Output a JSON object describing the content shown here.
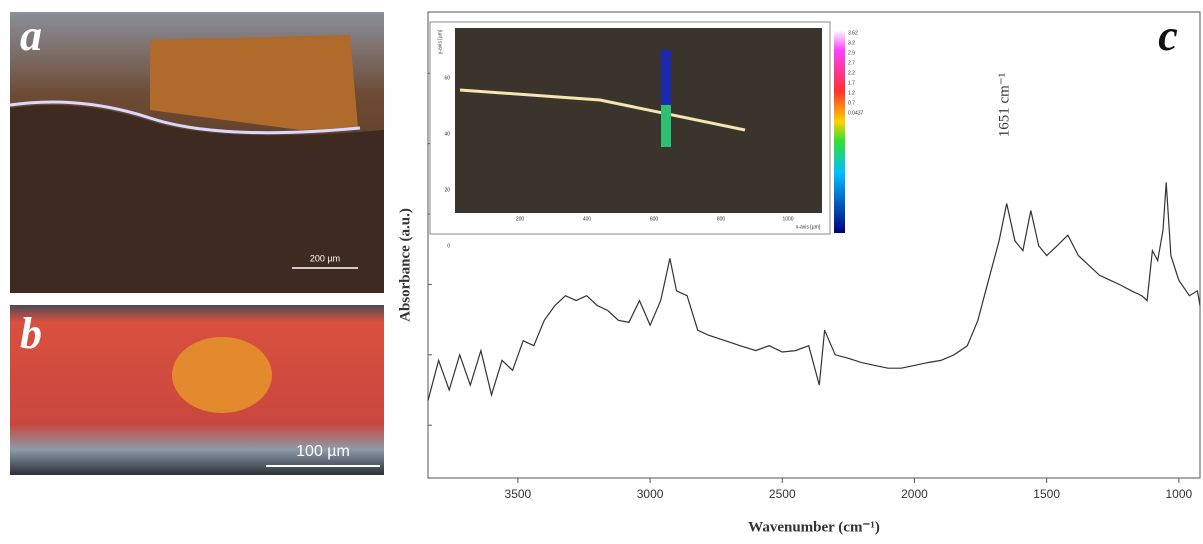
{
  "panels": {
    "a": {
      "label": "a",
      "scale_bar": "200 µm"
    },
    "b": {
      "label": "b",
      "scale_bar": "100 µm"
    },
    "c": {
      "label": "c"
    }
  },
  "inset": {
    "x_ticks": [
      "200",
      "400",
      "600",
      "800",
      "1000"
    ],
    "x_axis_label": "x-axis [µm]",
    "y_ticks": [
      "60",
      "40",
      "20",
      "0"
    ],
    "y_axis_label": "y-axis [µm]",
    "colorbar_ticks": [
      "3.62",
      "3.2",
      "2.9",
      "2.7",
      "2.2",
      "1.7",
      "1.2",
      "0.7",
      "0.0437"
    ]
  },
  "chart_data": {
    "type": "line",
    "x_label": "Wavenumber (cm⁻¹)",
    "y_label": "Absorbance (a.u.)",
    "annotation": "1651 cm⁻¹",
    "x": [
      3840,
      3800,
      3760,
      3720,
      3680,
      3640,
      3600,
      3560,
      3520,
      3480,
      3440,
      3400,
      3360,
      3320,
      3280,
      3240,
      3200,
      3160,
      3120,
      3080,
      3040,
      3000,
      2960,
      2925,
      2900,
      2860,
      2820,
      2780,
      2740,
      2700,
      2660,
      2600,
      2550,
      2500,
      2450,
      2400,
      2360,
      2340,
      2300,
      2250,
      2200,
      2150,
      2100,
      2050,
      2000,
      1950,
      1900,
      1850,
      1800,
      1760,
      1720,
      1680,
      1651,
      1620,
      1590,
      1560,
      1530,
      1500,
      1460,
      1420,
      1380,
      1340,
      1300,
      1260,
      1220,
      1180,
      1140,
      1120,
      1100,
      1080,
      1060,
      1048,
      1030,
      1000,
      960,
      930,
      920
    ],
    "series": [
      {
        "color": "#333333",
        "values": [
          1.35,
          1.92,
          1.5,
          2.0,
          1.57,
          2.06,
          1.43,
          1.92,
          1.78,
          2.2,
          2.13,
          2.49,
          2.7,
          2.84,
          2.77,
          2.84,
          2.7,
          2.63,
          2.49,
          2.46,
          2.77,
          2.42,
          2.77,
          3.37,
          2.91,
          2.84,
          2.35,
          2.28,
          2.23,
          2.18,
          2.13,
          2.06,
          2.13,
          2.04,
          2.06,
          2.13,
          1.57,
          2.35,
          2.0,
          1.95,
          1.89,
          1.85,
          1.81,
          1.81,
          1.85,
          1.89,
          1.92,
          2.0,
          2.13,
          2.49,
          3.06,
          3.62,
          4.15,
          3.62,
          3.48,
          4.05,
          3.55,
          3.41,
          3.55,
          3.7,
          3.41,
          3.27,
          3.13,
          3.06,
          2.99,
          2.91,
          2.84,
          2.77,
          3.48,
          3.34,
          3.77,
          4.45,
          3.41,
          3.06,
          2.84,
          2.91,
          2.7
        ]
      }
    ],
    "xlim": [
      3840,
      920
    ],
    "xticks": [
      3500,
      3000,
      2500,
      2000,
      1500,
      1000
    ],
    "ylim": [
      0.25,
      6.87
    ],
    "yticks": [
      1,
      2,
      3,
      4,
      5,
      6
    ]
  }
}
